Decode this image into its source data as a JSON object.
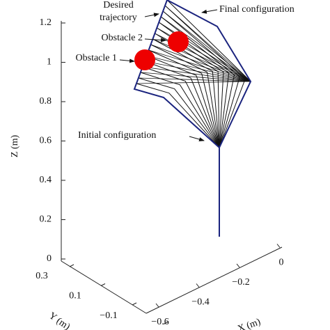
{
  "annotations": {
    "desired": [
      "Desired",
      "trajectory"
    ],
    "obstacle_2": "Obstacle 2",
    "obstacle_1": "Obstacle 1",
    "final": "Final configuration",
    "initial": "Initial configuration"
  },
  "axes": {
    "z_label": "Z (m)",
    "z_ticks": [
      "1.2",
      "1",
      "0.8",
      "0.6",
      "0.4",
      "0.2",
      "0"
    ],
    "y_label": "Y (m)",
    "y_ticks": [
      "0.3",
      "0.1",
      "−0.1",
      "−0.3"
    ],
    "x_label": "X (m)",
    "x_ticks": [
      "−0.6",
      "−0.4",
      "−0.2",
      "0"
    ]
  }
}
